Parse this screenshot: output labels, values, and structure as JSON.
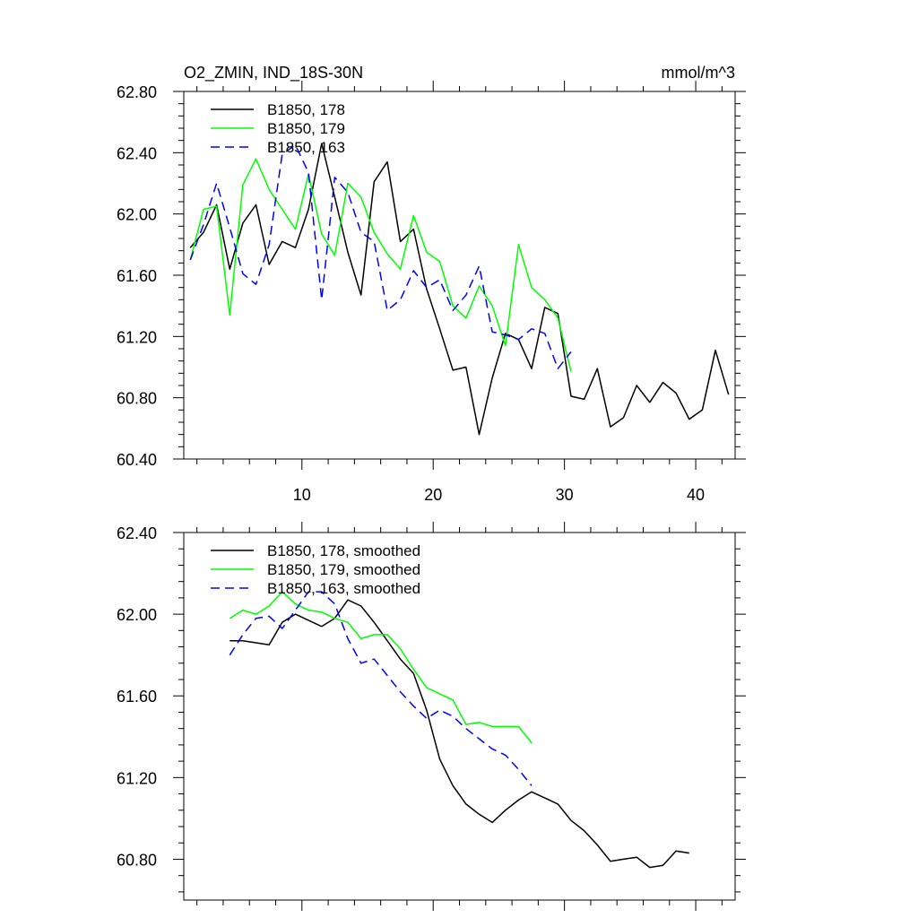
{
  "chart_data": [
    {
      "type": "line",
      "title": "O2_ZMIN, IND_18S-30N",
      "units": "mmol/m^3",
      "xlim": [
        1,
        43
      ],
      "ylim": [
        60.4,
        62.8
      ],
      "x_ticks": [
        10,
        20,
        30,
        40
      ],
      "x_tick_labels": [
        "10",
        "20",
        "30",
        "40"
      ],
      "y_ticks": [
        60.4,
        60.8,
        61.2,
        61.6,
        62.0,
        62.4,
        62.8
      ],
      "y_tick_labels": [
        "60.40",
        "60.80",
        "61.20",
        "61.60",
        "62.00",
        "62.40",
        "62.80"
      ],
      "legend_position": "top-left",
      "series": [
        {
          "name": "B1850, 178",
          "color": "#000000",
          "dash": "solid",
          "x": [
            1.5,
            2.5,
            3.5,
            4.5,
            5.5,
            6.5,
            7.5,
            8.5,
            9.5,
            10.5,
            11.5,
            12.5,
            13.5,
            14.5,
            15.5,
            16.5,
            17.5,
            18.5,
            19.5,
            20.5,
            21.5,
            22.5,
            23.5,
            24.5,
            25.5,
            26.5,
            27.5,
            28.5,
            29.5,
            30.5,
            31.5,
            32.5,
            33.5,
            34.5,
            35.5,
            36.5,
            37.5,
            38.5,
            39.5,
            40.5,
            41.5,
            42.5
          ],
          "values": [
            61.78,
            61.88,
            62.06,
            61.64,
            61.94,
            62.06,
            61.67,
            61.82,
            61.78,
            62.03,
            62.46,
            62.11,
            61.75,
            61.47,
            62.21,
            62.34,
            61.82,
            61.9,
            61.51,
            61.25,
            60.98,
            61.0,
            60.56,
            60.93,
            61.22,
            61.18,
            60.99,
            61.39,
            61.35,
            60.81,
            60.79,
            60.99,
            60.61,
            60.67,
            60.88,
            60.77,
            60.9,
            60.83,
            60.66,
            60.72,
            61.11,
            60.82
          ]
        },
        {
          "name": "B1850, 179",
          "color": "#00ff00",
          "dash": "solid",
          "x": [
            1.5,
            2.5,
            3.5,
            4.5,
            5.5,
            6.5,
            7.5,
            8.5,
            9.5,
            10.5,
            11.5,
            12.5,
            13.5,
            14.5,
            15.5,
            16.5,
            17.5,
            18.5,
            19.5,
            20.5,
            21.5,
            22.5,
            23.5,
            24.5,
            25.5,
            26.5,
            27.5,
            28.5,
            29.5,
            30.5
          ],
          "values": [
            61.7,
            62.03,
            62.05,
            61.34,
            62.19,
            62.36,
            62.16,
            62.03,
            61.9,
            62.26,
            61.87,
            61.73,
            62.2,
            62.11,
            61.88,
            61.74,
            61.64,
            61.99,
            61.75,
            61.69,
            61.4,
            61.32,
            61.53,
            61.4,
            61.14,
            61.8,
            61.52,
            61.44,
            61.32,
            60.97
          ]
        },
        {
          "name": "B1850, 163",
          "color": "#0000ff",
          "dash": "dashed",
          "x": [
            1.5,
            2.5,
            3.5,
            4.5,
            5.5,
            6.5,
            7.5,
            8.5,
            9.5,
            10.5,
            11.5,
            12.5,
            13.5,
            14.5,
            15.5,
            16.5,
            17.5,
            18.5,
            19.5,
            20.5,
            21.5,
            22.5,
            23.5,
            24.5,
            25.5,
            26.5,
            27.5,
            28.5,
            29.5,
            30.5
          ],
          "values": [
            61.7,
            61.93,
            62.2,
            61.91,
            61.61,
            61.54,
            61.8,
            62.39,
            62.45,
            62.27,
            61.44,
            62.24,
            62.14,
            61.88,
            61.82,
            61.37,
            61.44,
            61.63,
            61.52,
            61.57,
            61.37,
            61.47,
            61.66,
            61.23,
            61.21,
            61.18,
            61.25,
            61.22,
            60.99,
            61.1
          ]
        }
      ]
    },
    {
      "type": "line",
      "title": "",
      "xlim": [
        1,
        43
      ],
      "ylim": [
        60.6,
        62.4
      ],
      "x_ticks": [
        10,
        20,
        30,
        40
      ],
      "x_tick_labels": [
        "",
        "",
        "",
        ""
      ],
      "y_ticks": [
        60.8,
        61.2,
        61.6,
        62.0,
        62.4
      ],
      "y_tick_labels": [
        "60.80",
        "61.20",
        "61.60",
        "62.00",
        "62.40"
      ],
      "legend_position": "top-left",
      "series": [
        {
          "name": "B1850, 178, smoothed",
          "color": "#000000",
          "dash": "solid",
          "x": [
            4.5,
            5.5,
            6.5,
            7.5,
            8.5,
            9.5,
            10.5,
            11.5,
            12.5,
            13.5,
            14.5,
            15.5,
            16.5,
            17.5,
            18.5,
            19.5,
            20.5,
            21.5,
            22.5,
            23.5,
            24.5,
            25.5,
            26.5,
            27.5,
            28.5,
            29.5,
            30.5,
            31.5,
            32.5,
            33.5,
            34.5,
            35.5,
            36.5,
            37.5,
            38.5,
            39.5
          ],
          "values": [
            61.87,
            61.87,
            61.86,
            61.85,
            61.96,
            62.0,
            61.97,
            61.94,
            61.98,
            62.07,
            62.04,
            61.96,
            61.87,
            61.78,
            61.71,
            61.53,
            61.29,
            61.16,
            61.07,
            61.02,
            60.98,
            61.04,
            61.09,
            61.13,
            61.1,
            61.07,
            60.99,
            60.94,
            60.87,
            60.79,
            60.8,
            60.81,
            60.76,
            60.77,
            60.84,
            60.83
          ]
        },
        {
          "name": "B1850, 179, smoothed",
          "color": "#00ff00",
          "dash": "solid",
          "x": [
            4.5,
            5.5,
            6.5,
            7.5,
            8.5,
            9.5,
            10.5,
            11.5,
            12.5,
            13.5,
            14.5,
            15.5,
            16.5,
            17.5,
            18.5,
            19.5,
            20.5,
            21.5,
            22.5,
            23.5,
            24.5,
            25.5,
            26.5,
            27.5
          ],
          "values": [
            61.98,
            62.02,
            62.0,
            62.04,
            62.11,
            62.05,
            62.02,
            62.01,
            61.98,
            61.96,
            61.88,
            61.9,
            61.9,
            61.83,
            61.73,
            61.64,
            61.61,
            61.58,
            61.46,
            61.47,
            61.45,
            61.45,
            61.45,
            61.37
          ]
        },
        {
          "name": "B1850, 163, smoothed",
          "color": "#0000ff",
          "dash": "dashed",
          "x": [
            4.5,
            5.5,
            6.5,
            7.5,
            8.5,
            9.5,
            10.5,
            11.5,
            12.5,
            13.5,
            14.5,
            15.5,
            16.5,
            17.5,
            18.5,
            19.5,
            20.5,
            21.5,
            22.5,
            23.5,
            24.5,
            25.5,
            26.5,
            27.5
          ],
          "values": [
            61.8,
            61.9,
            61.98,
            61.99,
            61.93,
            62.02,
            62.11,
            62.11,
            62.05,
            61.88,
            61.76,
            61.78,
            61.7,
            61.62,
            61.55,
            61.49,
            61.53,
            61.5,
            61.44,
            61.39,
            61.34,
            61.31,
            61.24,
            61.16
          ]
        }
      ]
    }
  ]
}
